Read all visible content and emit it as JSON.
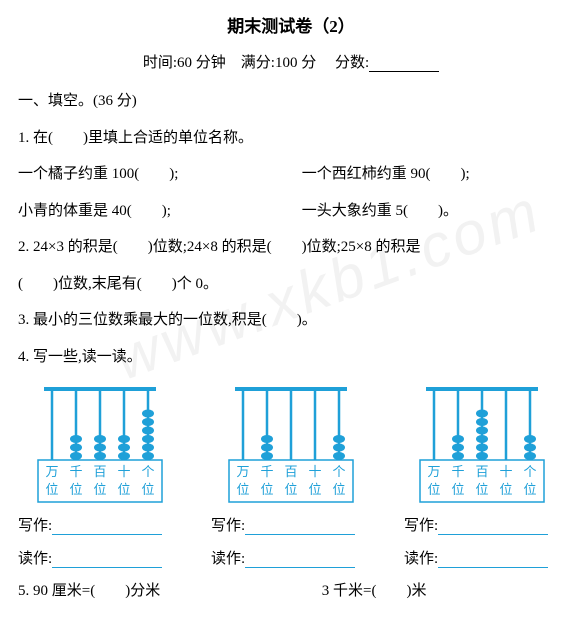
{
  "title": "期末测试卷（2）",
  "meta": {
    "time_label": "时间:60 分钟",
    "full_label": "满分:100 分",
    "score_label": "分数:"
  },
  "section1_header": "一、填空。(36 分)",
  "q1": {
    "prompt": "1. 在(　　)里填上合适的单位名称。",
    "a1_left": "一个橘子约重 100(　　);",
    "a1_right": "一个西红柿约重 90(　　);",
    "a2_left": "小青的体重是 40(　　);",
    "a2_right": "一头大象约重 5(　　)。"
  },
  "q2": {
    "line1": "2. 24×3 的积是(　　)位数;24×8 的积是(　　)位数;25×8 的积是",
    "line2": "(　　)位数,末尾有(　　)个 0。"
  },
  "q3": "3. 最小的三位数乘最大的一位数,积是(　　)。",
  "q4_prompt": "4. 写一些,读一读。",
  "abacus": {
    "color": "#1fa0d8",
    "labels_top": [
      "万",
      "千",
      "百",
      "十",
      "个"
    ],
    "labels_bot": [
      "位",
      "位",
      "位",
      "位",
      "位"
    ],
    "label_fontsize": 13,
    "rod_count": 5,
    "rod_height": 70,
    "bead_radius": 5,
    "configs": [
      {
        "beads": [
          0,
          3,
          3,
          3,
          6
        ]
      },
      {
        "beads": [
          0,
          3,
          0,
          0,
          3
        ]
      },
      {
        "beads": [
          0,
          3,
          6,
          0,
          3
        ]
      }
    ]
  },
  "write_label": "写作:",
  "read_label": "读作:",
  "q5": {
    "left": "5. 90 厘米=(　　)分米",
    "right": "3 千米=(　　)米"
  },
  "watermark": "www.xkb1.com"
}
